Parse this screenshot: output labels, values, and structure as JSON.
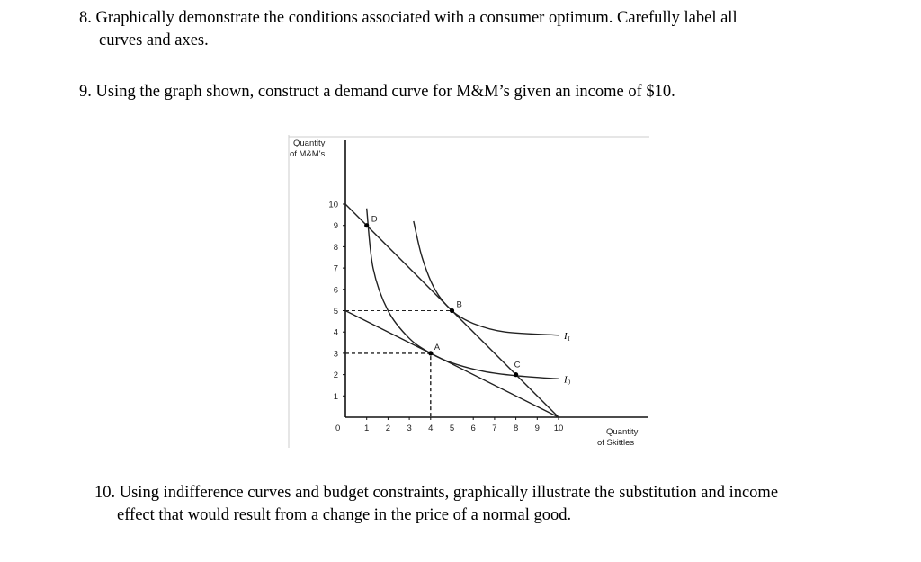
{
  "questions": [
    {
      "line1": "8. Graphically demonstrate the conditions associated with a consumer optimum. Carefully label all",
      "line2": "curves and axes."
    },
    {
      "line1": "9. Using the graph shown, construct a demand curve for M&M’s given an income of $10."
    },
    {
      "line1": "10. Using indifference curves and budget constraints, graphically illustrate the substitution and income",
      "line2": "effect that would result from a change in the price of a normal good."
    }
  ],
  "figure": {
    "y_label_1": "Quantity",
    "y_label_2": "of M&M's",
    "x_label_1": "Quantity",
    "x_label_2": "of Skittles",
    "origin_label": "0",
    "x_ticks": [
      "1",
      "2",
      "3",
      "4",
      "5",
      "6",
      "7",
      "8",
      "9",
      "10"
    ],
    "y_ticks": [
      "1",
      "2",
      "3",
      "4",
      "5",
      "6",
      "7",
      "8",
      "9",
      "10"
    ],
    "xlim": [
      0,
      12
    ],
    "ylim": [
      0,
      14
    ],
    "budget_lines": [
      {
        "from": [
          0,
          10
        ],
        "to": [
          10,
          0
        ]
      },
      {
        "from": [
          0,
          5
        ],
        "to": [
          10,
          0
        ]
      }
    ],
    "indifference_curves": [
      {
        "name": "I1",
        "points": [
          [
            3.2,
            9.2
          ],
          [
            3.6,
            7.5
          ],
          [
            4.2,
            6
          ],
          [
            5,
            5
          ],
          [
            6,
            4.4
          ],
          [
            7.5,
            4
          ],
          [
            10,
            3.85
          ]
        ]
      },
      {
        "name": "I0",
        "points": [
          [
            1,
            9.8
          ],
          [
            1.3,
            7
          ],
          [
            2,
            5
          ],
          [
            3,
            3.7
          ],
          [
            4,
            3
          ],
          [
            5,
            2.55
          ],
          [
            6.5,
            2.15
          ],
          [
            8,
            1.95
          ],
          [
            10,
            1.8
          ]
        ]
      }
    ],
    "points": [
      {
        "label": "D",
        "x": 1,
        "y": 9
      },
      {
        "label": "B",
        "x": 5,
        "y": 5
      },
      {
        "label": "A",
        "x": 4,
        "y": 3
      },
      {
        "label": "C",
        "x": 8,
        "y": 2
      }
    ],
    "dashed_guides": [
      [
        [
          0,
          5
        ],
        [
          5,
          5
        ],
        [
          5,
          0
        ]
      ],
      [
        [
          0,
          3
        ],
        [
          4,
          3
        ],
        [
          4,
          0
        ]
      ]
    ]
  }
}
